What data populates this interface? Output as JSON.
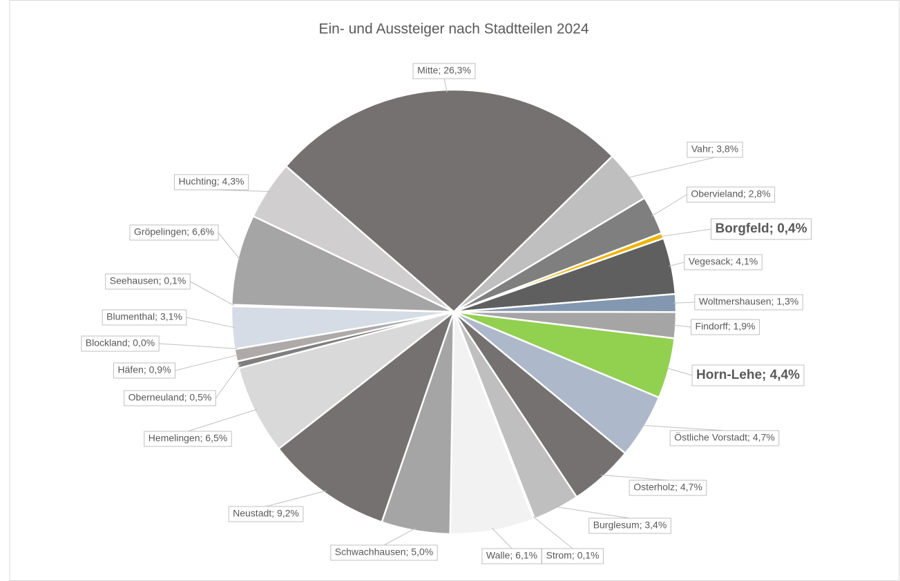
{
  "chart_data": {
    "type": "pie",
    "title": "Ein- und Aussteiger nach Stadtteilen 2024",
    "categories": [
      "Mitte",
      "Vahr",
      "Obervieland",
      "Borgfeld",
      "Vegesack",
      "Woltmershausen",
      "Findorff",
      "Horn-Lehe",
      "Östliche Vorstadt",
      "Osterholz",
      "Burglesum",
      "Strom",
      "Walle",
      "Schwachhausen",
      "Neustadt",
      "Hemelingen",
      "Oberneuland",
      "Häfen",
      "Blockland",
      "Blumenthal",
      "Seehausen",
      "Gröpelingen",
      "Huchting"
    ],
    "values": [
      26.3,
      3.8,
      2.8,
      0.4,
      4.1,
      1.3,
      1.9,
      4.4,
      4.7,
      4.7,
      3.4,
      0.1,
      6.1,
      5.0,
      9.2,
      6.5,
      0.5,
      0.9,
      0.0,
      3.1,
      0.1,
      6.6,
      4.3
    ],
    "value_labels": [
      "Mitte; 26,3%",
      "Vahr; 3,8%",
      "Obervieland; 2,8%",
      "Borgfeld; 0,4%",
      "Vegesack; 4,1%",
      "Woltmershausen; 1,3%",
      "Findorff; 1,9%",
      "Horn-Lehe; 4,4%",
      "Östliche Vorstadt; 4,7%",
      "Osterholz; 4,7%",
      "Burglesum; 3,4%",
      "Strom; 0,1%",
      "Walle; 6,1%",
      "Schwachhausen; 5,0%",
      "Neustadt; 9,2%",
      "Hemelingen; 6,5%",
      "Oberneuland; 0,5%",
      "Häfen; 0,9%",
      "Blockland; 0,0%",
      "Blumenthal; 3,1%",
      "Seehausen; 0,1%",
      "Gröpelingen; 6,6%",
      "Huchting; 4,3%"
    ],
    "colors": [
      "#757170",
      "#bfbfbf",
      "#7f7f7f",
      "#f0b400",
      "#5f5f5f",
      "#8497b0",
      "#a5a5a5",
      "#92d050",
      "#adb9ca",
      "#757170",
      "#bfbfbf",
      "#7f7f7f",
      "#f2f2f2",
      "#a5a5a5",
      "#757170",
      "#d9d9d9",
      "#7f7f7f",
      "#aeaaaa",
      "#8c8c8c",
      "#d6dce5",
      "#a5a5a5",
      "#a5a5a5",
      "#d0cece"
    ],
    "highlight": [
      "Borgfeld",
      "Horn-Lehe"
    ]
  }
}
